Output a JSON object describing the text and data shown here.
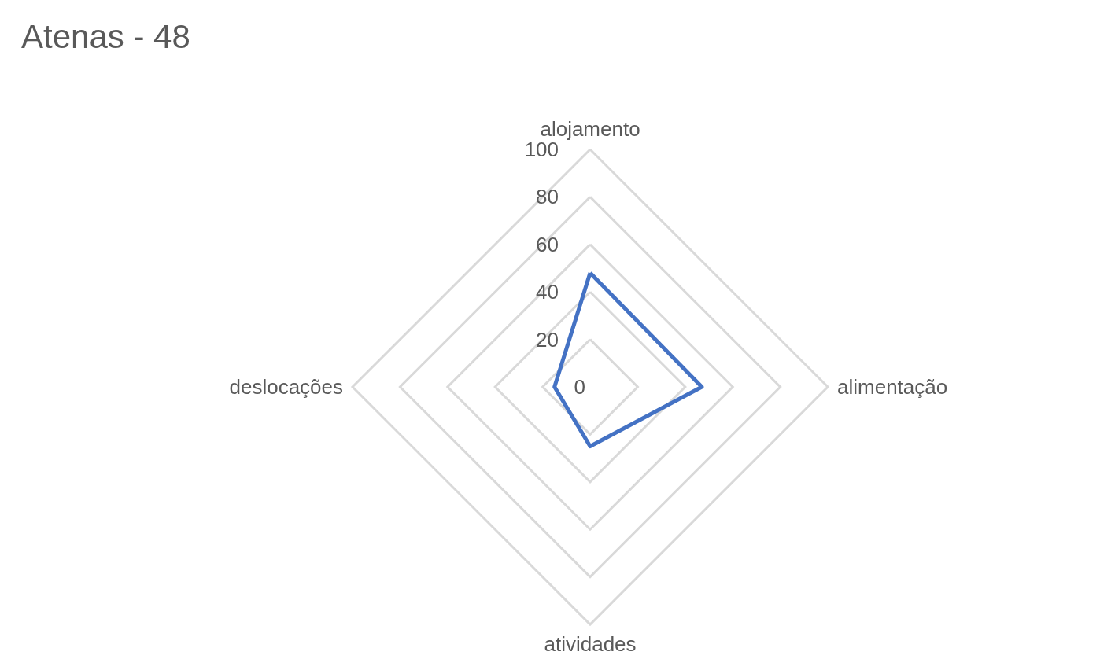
{
  "chart_data": {
    "type": "radar",
    "title": "Atenas - 48",
    "categories": [
      "alojamento",
      "alimentação",
      "atividades",
      "deslocações"
    ],
    "series": [
      {
        "color": "#4472c4",
        "values": [
          48,
          47,
          25,
          15
        ]
      }
    ],
    "ylim": [
      0,
      100
    ],
    "yticks": [
      0,
      20,
      40,
      60,
      80,
      100
    ],
    "grid": true,
    "marker": "none",
    "line_style": "solid"
  }
}
